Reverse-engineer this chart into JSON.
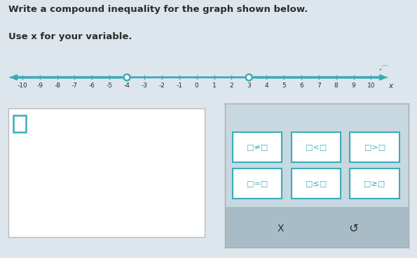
{
  "title_line1": "Write a compound inequality for the graph shown below.",
  "title_line2": "Use x for your variable.",
  "bg_color": "#dce6ec",
  "number_line": {
    "xmin": -10,
    "xmax": 10,
    "open_circles": [
      -4,
      3
    ],
    "line_color": "#3aacb8",
    "tick_labels": [
      -10,
      -9,
      -8,
      -7,
      -6,
      -5,
      -4,
      -3,
      -2,
      -1,
      0,
      1,
      2,
      3,
      4,
      5,
      6,
      7,
      8,
      9,
      10
    ]
  },
  "answer_box": {
    "bg": "#ffffff",
    "border": "#bbbbbb",
    "small_box_color": "#3aacb8"
  },
  "button_panel": {
    "bg": "#c8d8e0",
    "btn_bg": "#ffffff",
    "btn_edge": "#3aacb8",
    "btn_text": "#3aacb8",
    "bottom_bg": "#a8bcc8"
  },
  "font_color": "#2c2c2c",
  "title_fontsize": 9.5,
  "tick_fontsize": 6.5
}
